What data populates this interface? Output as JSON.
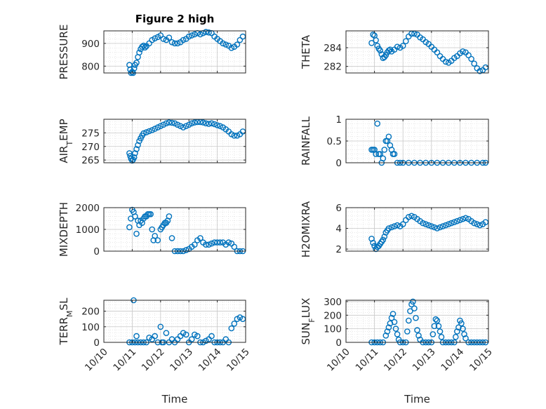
{
  "chart_data": [
    {
      "type": "scatter",
      "title": "Figure 2 high",
      "ylabel": "PRESSURE",
      "xlabel": "",
      "xlim": [
        0,
        5
      ],
      "ylim": [
        770,
        955
      ],
      "yticks": [
        800,
        900
      ],
      "xticks": [
        "10/10",
        "10/11",
        "10/12",
        "10/13",
        "10/14",
        "10/15"
      ],
      "x": [
        0.9,
        0.93,
        0.96,
        1.0,
        1.03,
        1.07,
        1.1,
        1.15,
        1.2,
        1.25,
        1.3,
        1.35,
        1.4,
        1.45,
        1.5,
        1.6,
        1.7,
        1.8,
        1.9,
        2.0,
        2.1,
        2.2,
        2.3,
        2.4,
        2.5,
        2.6,
        2.7,
        2.8,
        2.9,
        3.0,
        3.1,
        3.2,
        3.3,
        3.4,
        3.5,
        3.6,
        3.7,
        3.8,
        3.9,
        4.0,
        4.1,
        4.2,
        4.3,
        4.4,
        4.5,
        4.6,
        4.7,
        4.8,
        4.9
      ],
      "y": [
        805,
        785,
        770,
        775,
        770,
        790,
        805,
        815,
        840,
        860,
        875,
        885,
        890,
        882,
        888,
        900,
        915,
        922,
        928,
        935,
        920,
        915,
        925,
        905,
        900,
        900,
        905,
        915,
        920,
        930,
        935,
        940,
        945,
        940,
        945,
        950,
        948,
        945,
        930,
        920,
        910,
        900,
        895,
        890,
        880,
        885,
        895,
        915,
        930
      ]
    },
    {
      "type": "scatter",
      "ylabel": "THETA",
      "xlabel": "",
      "xlim": [
        0,
        5
      ],
      "ylim": [
        281.3,
        285.8
      ],
      "yticks": [
        282,
        284
      ],
      "xticks": [
        "10/10",
        "10/11",
        "10/12",
        "10/13",
        "10/14",
        "10/15"
      ],
      "x": [
        0.9,
        0.95,
        1.0,
        1.05,
        1.1,
        1.15,
        1.2,
        1.25,
        1.3,
        1.35,
        1.4,
        1.45,
        1.5,
        1.55,
        1.6,
        1.7,
        1.8,
        1.9,
        2.0,
        2.1,
        2.2,
        2.3,
        2.4,
        2.5,
        2.6,
        2.7,
        2.8,
        2.9,
        3.0,
        3.1,
        3.2,
        3.3,
        3.4,
        3.5,
        3.6,
        3.7,
        3.8,
        3.9,
        4.0,
        4.1,
        4.2,
        4.3,
        4.4,
        4.5,
        4.6,
        4.7,
        4.8,
        4.9
      ],
      "y": [
        284.5,
        285.4,
        285.3,
        284.8,
        284.2,
        283.9,
        283.7,
        283.3,
        282.9,
        283.0,
        283.2,
        283.5,
        283.7,
        283.8,
        283.6,
        283.8,
        284.1,
        284.0,
        284.2,
        284.7,
        285.2,
        285.5,
        285.5,
        285.4,
        285.1,
        284.9,
        284.6,
        284.4,
        284.1,
        283.8,
        283.5,
        283.1,
        282.8,
        282.5,
        282.4,
        282.6,
        282.9,
        283.1,
        283.4,
        283.6,
        283.5,
        283.2,
        282.8,
        282.3,
        281.8,
        281.5,
        281.6,
        281.9
      ]
    },
    {
      "type": "scatter",
      "ylabel": "AIR_TEMP",
      "xlabel": "",
      "xlim": [
        0,
        5
      ],
      "ylim": [
        264,
        280
      ],
      "yticks": [
        265,
        270,
        275
      ],
      "xticks": [
        "10/10",
        "10/11",
        "10/12",
        "10/13",
        "10/14",
        "10/15"
      ],
      "x": [
        0.9,
        0.93,
        0.96,
        1.0,
        1.03,
        1.07,
        1.1,
        1.15,
        1.2,
        1.25,
        1.3,
        1.35,
        1.4,
        1.5,
        1.6,
        1.7,
        1.8,
        1.9,
        2.0,
        2.1,
        2.2,
        2.3,
        2.4,
        2.5,
        2.6,
        2.7,
        2.8,
        2.9,
        3.0,
        3.1,
        3.2,
        3.3,
        3.4,
        3.5,
        3.6,
        3.7,
        3.8,
        3.9,
        4.0,
        4.1,
        4.2,
        4.3,
        4.4,
        4.5,
        4.6,
        4.7,
        4.8,
        4.9
      ],
      "y": [
        267.5,
        266.5,
        265.5,
        264.8,
        265.2,
        266,
        267.5,
        269,
        270.5,
        272,
        273,
        274,
        274.8,
        275.2,
        275.6,
        276,
        276.5,
        277,
        277.5,
        278,
        278.5,
        278.8,
        278.7,
        278.5,
        278,
        277.5,
        277,
        277.5,
        278,
        278.5,
        278.8,
        279,
        279,
        278.8,
        278.5,
        278.3,
        278.5,
        278.2,
        277.8,
        277.5,
        277,
        276.3,
        275.5,
        274.5,
        274,
        274,
        274.5,
        275.5
      ]
    },
    {
      "type": "scatter",
      "ylabel": "RAINFALL",
      "xlabel": "",
      "xlim": [
        0,
        5
      ],
      "ylim": [
        0,
        1
      ],
      "yticks": [
        0,
        0.5,
        1
      ],
      "xticks": [
        "10/10",
        "10/11",
        "10/12",
        "10/13",
        "10/14",
        "10/15"
      ],
      "x": [
        0.9,
        0.95,
        1.0,
        1.05,
        1.1,
        1.15,
        1.2,
        1.25,
        1.3,
        1.35,
        1.4,
        1.45,
        1.5,
        1.55,
        1.6,
        1.65,
        1.7,
        1.8,
        1.9,
        2.0,
        2.2,
        2.4,
        2.6,
        2.8,
        3.0,
        3.2,
        3.4,
        3.6,
        3.8,
        4.0,
        4.2,
        4.4,
        4.6,
        4.8,
        4.9
      ],
      "y": [
        0.3,
        0.3,
        0.3,
        0.2,
        0.9,
        0.2,
        0.2,
        0,
        0.1,
        0.3,
        0.5,
        0.5,
        0.6,
        0.4,
        0.3,
        0.2,
        0.2,
        0,
        0,
        0,
        0,
        0,
        0,
        0,
        0,
        0,
        0,
        0,
        0,
        0,
        0,
        0,
        0,
        0,
        0
      ]
    },
    {
      "type": "scatter",
      "ylabel": "MIXDEPTH",
      "xlabel": "",
      "xlim": [
        0,
        5
      ],
      "ylim": [
        0,
        2000
      ],
      "yticks": [
        0,
        1000,
        2000
      ],
      "xticks": [
        "10/10",
        "10/11",
        "10/12",
        "10/13",
        "10/14",
        "10/15"
      ],
      "x": [
        0.9,
        0.95,
        1.0,
        1.05,
        1.1,
        1.15,
        1.2,
        1.25,
        1.3,
        1.35,
        1.4,
        1.45,
        1.5,
        1.55,
        1.6,
        1.65,
        1.7,
        1.75,
        1.8,
        1.9,
        2.0,
        2.05,
        2.1,
        2.15,
        2.2,
        2.25,
        2.3,
        2.4,
        2.5,
        2.6,
        2.7,
        2.8,
        2.9,
        3.0,
        3.1,
        3.2,
        3.3,
        3.4,
        3.5,
        3.6,
        3.7,
        3.8,
        3.9,
        4.0,
        4.1,
        4.2,
        4.3,
        4.4,
        4.5,
        4.6,
        4.7,
        4.8,
        4.9
      ],
      "y": [
        1100,
        1500,
        1900,
        1800,
        1600,
        800,
        1400,
        1200,
        1400,
        1300,
        1500,
        1600,
        1600,
        1700,
        1700,
        1700,
        1000,
        500,
        700,
        500,
        1000,
        1100,
        1200,
        1300,
        1300,
        1400,
        1600,
        600,
        0,
        0,
        0,
        0,
        50,
        100,
        200,
        300,
        500,
        600,
        400,
        300,
        300,
        350,
        400,
        400,
        400,
        400,
        300,
        400,
        350,
        200,
        0,
        0,
        0
      ]
    },
    {
      "type": "scatter",
      "ylabel": "H2OMIXRA",
      "xlabel": "",
      "xlim": [
        0,
        5
      ],
      "ylim": [
        1.8,
        6
      ],
      "yticks": [
        2,
        4,
        6
      ],
      "xticks": [
        "10/10",
        "10/11",
        "10/12",
        "10/13",
        "10/14",
        "10/15"
      ],
      "x": [
        0.9,
        0.95,
        1.0,
        1.05,
        1.1,
        1.15,
        1.2,
        1.25,
        1.3,
        1.35,
        1.4,
        1.45,
        1.5,
        1.6,
        1.7,
        1.8,
        1.9,
        2.0,
        2.1,
        2.2,
        2.3,
        2.4,
        2.5,
        2.6,
        2.7,
        2.8,
        2.9,
        3.0,
        3.1,
        3.2,
        3.3,
        3.4,
        3.5,
        3.6,
        3.7,
        3.8,
        3.9,
        4.0,
        4.1,
        4.2,
        4.3,
        4.4,
        4.5,
        4.6,
        4.7,
        4.8,
        4.9
      ],
      "y": [
        3,
        2.6,
        2.3,
        2.0,
        2.2,
        2.3,
        2.5,
        2.7,
        2.9,
        3.2,
        3.6,
        3.8,
        4.0,
        4.1,
        4.2,
        4.3,
        4.2,
        4.4,
        4.8,
        5.1,
        5.2,
        5.1,
        4.9,
        4.7,
        4.5,
        4.4,
        4.3,
        4.2,
        4.1,
        4.0,
        4.1,
        4.2,
        4.3,
        4.4,
        4.5,
        4.6,
        4.7,
        4.8,
        4.9,
        5.0,
        4.9,
        4.7,
        4.5,
        4.4,
        4.3,
        4.4,
        4.6
      ]
    },
    {
      "type": "scatter",
      "ylabel": "TERR_MSL",
      "xlabel": "Time",
      "xlim": [
        0,
        5
      ],
      "ylim": [
        0,
        270
      ],
      "yticks": [
        0,
        100,
        200
      ],
      "xticks": [
        "10/10",
        "10/11",
        "10/12",
        "10/13",
        "10/14",
        "10/15"
      ],
      "x": [
        0.9,
        1.0,
        1.05,
        1.1,
        1.15,
        1.2,
        1.3,
        1.4,
        1.5,
        1.6,
        1.7,
        1.8,
        1.9,
        2.0,
        2.05,
        2.1,
        2.2,
        2.3,
        2.4,
        2.5,
        2.6,
        2.7,
        2.8,
        2.9,
        3.0,
        3.1,
        3.2,
        3.3,
        3.4,
        3.5,
        3.6,
        3.7,
        3.8,
        3.9,
        4.0,
        4.1,
        4.2,
        4.3,
        4.4,
        4.5,
        4.6,
        4.7,
        4.8,
        4.9
      ],
      "y": [
        0,
        0,
        270,
        0,
        40,
        0,
        0,
        0,
        0,
        30,
        20,
        40,
        0,
        100,
        0,
        0,
        60,
        0,
        20,
        0,
        20,
        40,
        60,
        50,
        0,
        20,
        50,
        40,
        0,
        0,
        10,
        20,
        40,
        0,
        0,
        0,
        0,
        20,
        0,
        90,
        120,
        150,
        160,
        150
      ]
    },
    {
      "type": "scatter",
      "ylabel": "SUN_FLUX",
      "xlabel": "Time",
      "xlim": [
        0,
        5
      ],
      "ylim": [
        0,
        310
      ],
      "yticks": [
        0,
        100,
        200,
        300
      ],
      "xticks": [
        "10/10",
        "10/11",
        "10/12",
        "10/13",
        "10/14",
        "10/15"
      ],
      "x": [
        0.9,
        1.0,
        1.1,
        1.2,
        1.3,
        1.4,
        1.45,
        1.5,
        1.55,
        1.6,
        1.65,
        1.7,
        1.75,
        1.8,
        1.85,
        1.9,
        2.0,
        2.1,
        2.15,
        2.2,
        2.25,
        2.3,
        2.35,
        2.4,
        2.45,
        2.5,
        2.55,
        2.6,
        2.7,
        2.8,
        2.9,
        3.0,
        3.05,
        3.1,
        3.15,
        3.2,
        3.25,
        3.3,
        3.35,
        3.4,
        3.5,
        3.6,
        3.7,
        3.8,
        3.85,
        3.9,
        3.95,
        4.0,
        4.05,
        4.1,
        4.15,
        4.2,
        4.3,
        4.4,
        4.5,
        4.6,
        4.7,
        4.8,
        4.9
      ],
      "y": [
        0,
        0,
        0,
        0,
        0,
        50,
        80,
        110,
        140,
        180,
        210,
        150,
        100,
        60,
        20,
        0,
        0,
        0,
        80,
        160,
        230,
        280,
        300,
        250,
        180,
        90,
        50,
        20,
        0,
        0,
        0,
        0,
        60,
        120,
        170,
        160,
        120,
        80,
        40,
        0,
        0,
        0,
        0,
        0,
        40,
        80,
        110,
        160,
        140,
        100,
        60,
        30,
        0,
        0,
        0,
        0,
        0,
        0,
        0
      ]
    }
  ]
}
